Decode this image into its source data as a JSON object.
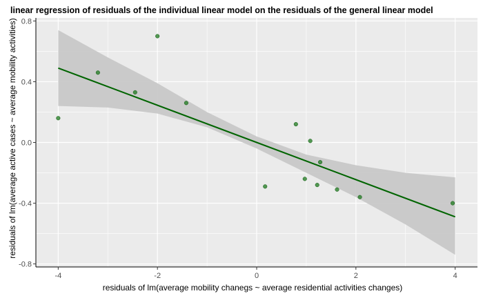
{
  "chart_data": {
    "type": "scatter",
    "title": "linear regression of residuals of the individual linear model on the residuals of the general linear model",
    "xlabel": "residuals of lm(average mobility chanegs ~ average residential activities changes)",
    "ylabel": "residuals of lm(average active cases ~ average mobility activities)",
    "xlim": [
      -4.45,
      4.45
    ],
    "ylim": [
      -0.82,
      0.82
    ],
    "x_ticks": [
      -4,
      -2,
      0,
      2,
      4
    ],
    "x_tick_labels": [
      "-4",
      "-2",
      "0",
      "2",
      "4"
    ],
    "y_ticks": [
      -0.8,
      -0.4,
      0.0,
      0.4,
      0.8
    ],
    "y_tick_labels": [
      "-0.8",
      "-0.4",
      "0.0",
      "0.4",
      "0.8"
    ],
    "grid": true,
    "points": [
      {
        "x": -4.0,
        "y": 0.16
      },
      {
        "x": -3.2,
        "y": 0.46
      },
      {
        "x": -2.45,
        "y": 0.33
      },
      {
        "x": -2.0,
        "y": 0.7
      },
      {
        "x": -1.42,
        "y": 0.26
      },
      {
        "x": 0.17,
        "y": -0.29
      },
      {
        "x": 0.79,
        "y": 0.12
      },
      {
        "x": 0.97,
        "y": -0.24
      },
      {
        "x": 1.08,
        "y": 0.01
      },
      {
        "x": 1.22,
        "y": -0.28
      },
      {
        "x": 1.28,
        "y": -0.13
      },
      {
        "x": 1.62,
        "y": -0.31
      },
      {
        "x": 2.08,
        "y": -0.36
      },
      {
        "x": 3.95,
        "y": -0.4
      }
    ],
    "fit_line": {
      "x": [
        -4.0,
        4.0
      ],
      "y": [
        0.49,
        -0.49
      ]
    },
    "confidence_band": {
      "x": [
        -4.0,
        -3.0,
        -2.0,
        -1.0,
        0.0,
        1.0,
        2.0,
        3.0,
        4.0
      ],
      "lower": [
        0.24,
        0.23,
        0.19,
        0.1,
        -0.04,
        -0.2,
        -0.36,
        -0.54,
        -0.74
      ],
      "upper": [
        0.74,
        0.56,
        0.39,
        0.2,
        0.04,
        -0.08,
        -0.15,
        -0.2,
        -0.23
      ]
    },
    "colors": {
      "panel_bg": "#ebebeb",
      "grid": "#ffffff",
      "point": "#1e7a1e",
      "line": "#006400",
      "band": "#c8c8c8"
    }
  }
}
